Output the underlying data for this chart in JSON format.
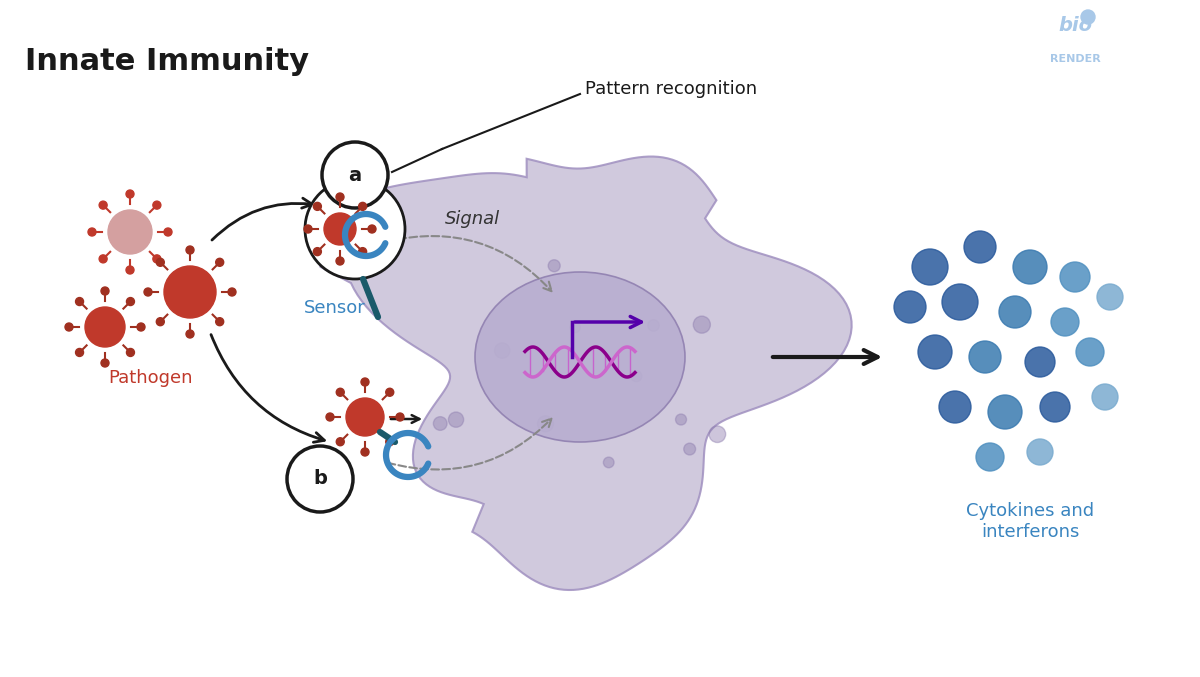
{
  "title": "Innate Immunity",
  "title_fontsize": 22,
  "title_fontweight": "bold",
  "bg_color": "#ffffff",
  "cell_color": "#c8c0d8",
  "cell_alpha": 0.85,
  "nucleus_color": "#b8aed0",
  "nucleus_alpha": 0.9,
  "sensor_label_color": "#3a85c0",
  "pathogen_color_dark": "#c0392b",
  "cytokine_color": "#2a5a9c",
  "dna_color1": "#8b008b",
  "dna_color2": "#cc66cc",
  "arrow_color": "#1a1a1a",
  "dashed_color": "#888888",
  "biorender_color": "#a8c8e8",
  "label_pattern": "Pattern recognition",
  "label_signal": "Signal",
  "label_sensor": "Sensor",
  "label_pathogen": "Pathogen",
  "label_cytokines": "Cytokines and\ninterferons",
  "label_a": "a",
  "label_b": "b",
  "cytokine_positions": [
    [
      9.3,
      4.1,
      "#2a5a9c",
      0.18
    ],
    [
      9.8,
      4.3,
      "#2a5a9c",
      0.16
    ],
    [
      10.3,
      4.1,
      "#3a7ab0",
      0.17
    ],
    [
      10.75,
      4.0,
      "#5090c0",
      0.15
    ],
    [
      9.1,
      3.7,
      "#2a5a9c",
      0.16
    ],
    [
      9.6,
      3.75,
      "#2a5a9c",
      0.18
    ],
    [
      10.15,
      3.65,
      "#3a7ab0",
      0.16
    ],
    [
      10.65,
      3.55,
      "#5090c0",
      0.14
    ],
    [
      11.1,
      3.8,
      "#7aabcf",
      0.13
    ],
    [
      9.35,
      3.25,
      "#2a5a9c",
      0.17
    ],
    [
      9.85,
      3.2,
      "#3a7ab0",
      0.16
    ],
    [
      10.4,
      3.15,
      "#2a5a9c",
      0.15
    ],
    [
      10.9,
      3.25,
      "#5090c0",
      0.14
    ],
    [
      9.55,
      2.7,
      "#2a5a9c",
      0.16
    ],
    [
      10.05,
      2.65,
      "#3a7ab0",
      0.17
    ],
    [
      10.55,
      2.7,
      "#2a5a9c",
      0.15
    ],
    [
      11.05,
      2.8,
      "#7aabcf",
      0.13
    ],
    [
      9.9,
      2.2,
      "#5090c0",
      0.14
    ],
    [
      10.4,
      2.25,
      "#7aabcf",
      0.13
    ]
  ]
}
